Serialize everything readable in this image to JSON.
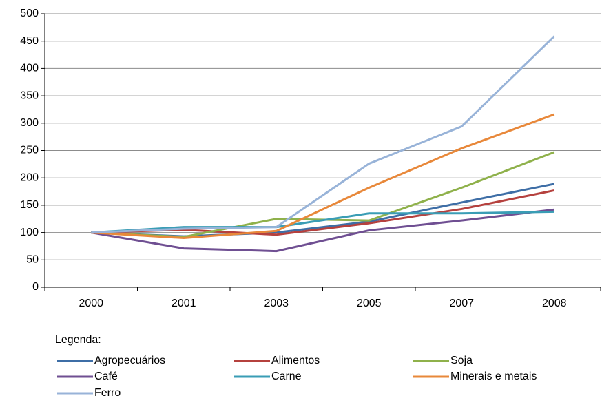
{
  "chart_data": {
    "type": "line",
    "categories": [
      "2000",
      "2001",
      "2003",
      "2005",
      "2007",
      "2008"
    ],
    "series": [
      {
        "name": "Agropecuários",
        "color": "#3e6ea6",
        "values": [
          100,
          93,
          100,
          120,
          155,
          189
        ]
      },
      {
        "name": "Alimentos",
        "color": "#b5413e",
        "values": [
          100,
          105,
          96,
          117,
          143,
          177
        ]
      },
      {
        "name": "Soja",
        "color": "#8fb14b",
        "values": [
          100,
          92,
          125,
          122,
          182,
          247
        ]
      },
      {
        "name": "Café",
        "color": "#6f4f92",
        "values": [
          100,
          71,
          66,
          104,
          122,
          142
        ]
      },
      {
        "name": "Carne",
        "color": "#3a9db5",
        "values": [
          100,
          110,
          110,
          135,
          135,
          138
        ]
      },
      {
        "name": "Minerais e metais",
        "color": "#e8883a",
        "values": [
          100,
          90,
          103,
          182,
          254,
          316
        ]
      },
      {
        "name": "Ferro",
        "color": "#98b3d8",
        "values": [
          100,
          107,
          110,
          226,
          294,
          459
        ]
      }
    ],
    "ylim": [
      0,
      500
    ],
    "yticks": [
      0,
      50,
      100,
      150,
      200,
      250,
      300,
      350,
      400,
      450,
      500
    ],
    "grid": true,
    "legend_title": "Legenda:",
    "legend_position": "bottom"
  }
}
